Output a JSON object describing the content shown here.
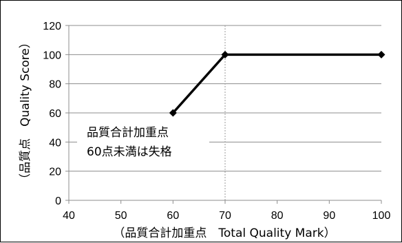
{
  "chart_data": {
    "type": "line",
    "xlabel": "（品質合計加重点　Total Quality Mark）",
    "ylabel": "（品質点　Quality Score）",
    "xlim": [
      40,
      100
    ],
    "ylim": [
      0,
      120
    ],
    "x_ticks": [
      40,
      50,
      60,
      70,
      80,
      90,
      100
    ],
    "y_ticks": [
      0,
      20,
      40,
      60,
      80,
      100,
      120
    ],
    "grid": "horizontal",
    "series": [
      {
        "x": [
          60,
          70,
          100
        ],
        "y": [
          60,
          100,
          100
        ]
      }
    ],
    "reference_line": {
      "x": 70,
      "style": "dashed"
    },
    "annotation": [
      "品質合計加重点",
      "60点未満は失格"
    ]
  }
}
